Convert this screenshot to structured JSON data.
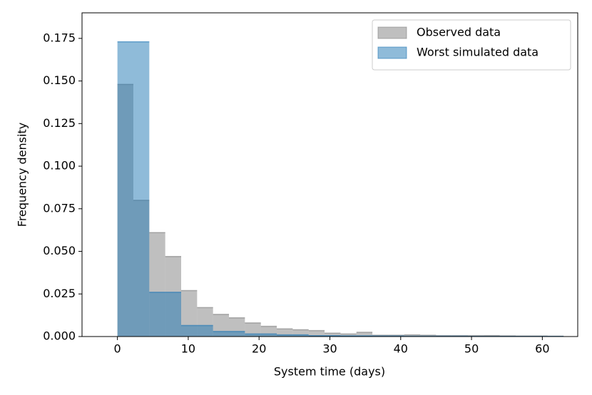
{
  "chart_data": {
    "type": "histogram",
    "xlabel": "System time (days)",
    "ylabel": "Frequency density",
    "xlim": [
      -5,
      65
    ],
    "ylim": [
      0,
      0.19
    ],
    "xticks": [
      0,
      10,
      20,
      30,
      40,
      50,
      60
    ],
    "yticks": [
      {
        "value": 0,
        "label": "0.000"
      },
      0.025,
      {
        "value": 0.05,
        "label": "0.050"
      },
      0.075,
      {
        "value": 0.1,
        "label": "0.100"
      },
      0.125,
      {
        "value": 0.15,
        "label": "0.150"
      },
      0.175
    ],
    "legend": "upper right",
    "series": [
      {
        "name": "Observed data",
        "color": "#808080",
        "bins": [
          0,
          2.25,
          4.5,
          6.75,
          9,
          11.25,
          13.5,
          15.75,
          18,
          20.25,
          22.5,
          24.75,
          27,
          29.25,
          31.5,
          33.75,
          36,
          38.25,
          40.5,
          42.75,
          45,
          47.25,
          49.5,
          51.75,
          54,
          56.25,
          58.5,
          60.75,
          63
        ],
        "values": [
          0.148,
          0.08,
          0.061,
          0.047,
          0.027,
          0.017,
          0.013,
          0.011,
          0.008,
          0.006,
          0.0045,
          0.004,
          0.0035,
          0.002,
          0.0015,
          0.0025,
          0.0008,
          0.0008,
          0.001,
          0.0008,
          0.0005,
          0.0005,
          0.0005,
          0.0006,
          0.0004,
          0.0003,
          0.0003,
          0.0002
        ]
      },
      {
        "name": "Worst simulated data",
        "color": "#1f77b4",
        "bins": [
          0,
          4.5,
          9,
          13.5,
          18,
          22.5,
          27,
          31.5,
          36,
          40.5,
          45,
          49.5,
          54,
          58.5,
          63
        ],
        "values": [
          0.173,
          0.026,
          0.0065,
          0.003,
          0.0015,
          0.001,
          0.0005,
          0.0004,
          0.0003,
          0.0002,
          0.0002,
          0.0001,
          0.0001,
          0.0001
        ]
      }
    ]
  }
}
